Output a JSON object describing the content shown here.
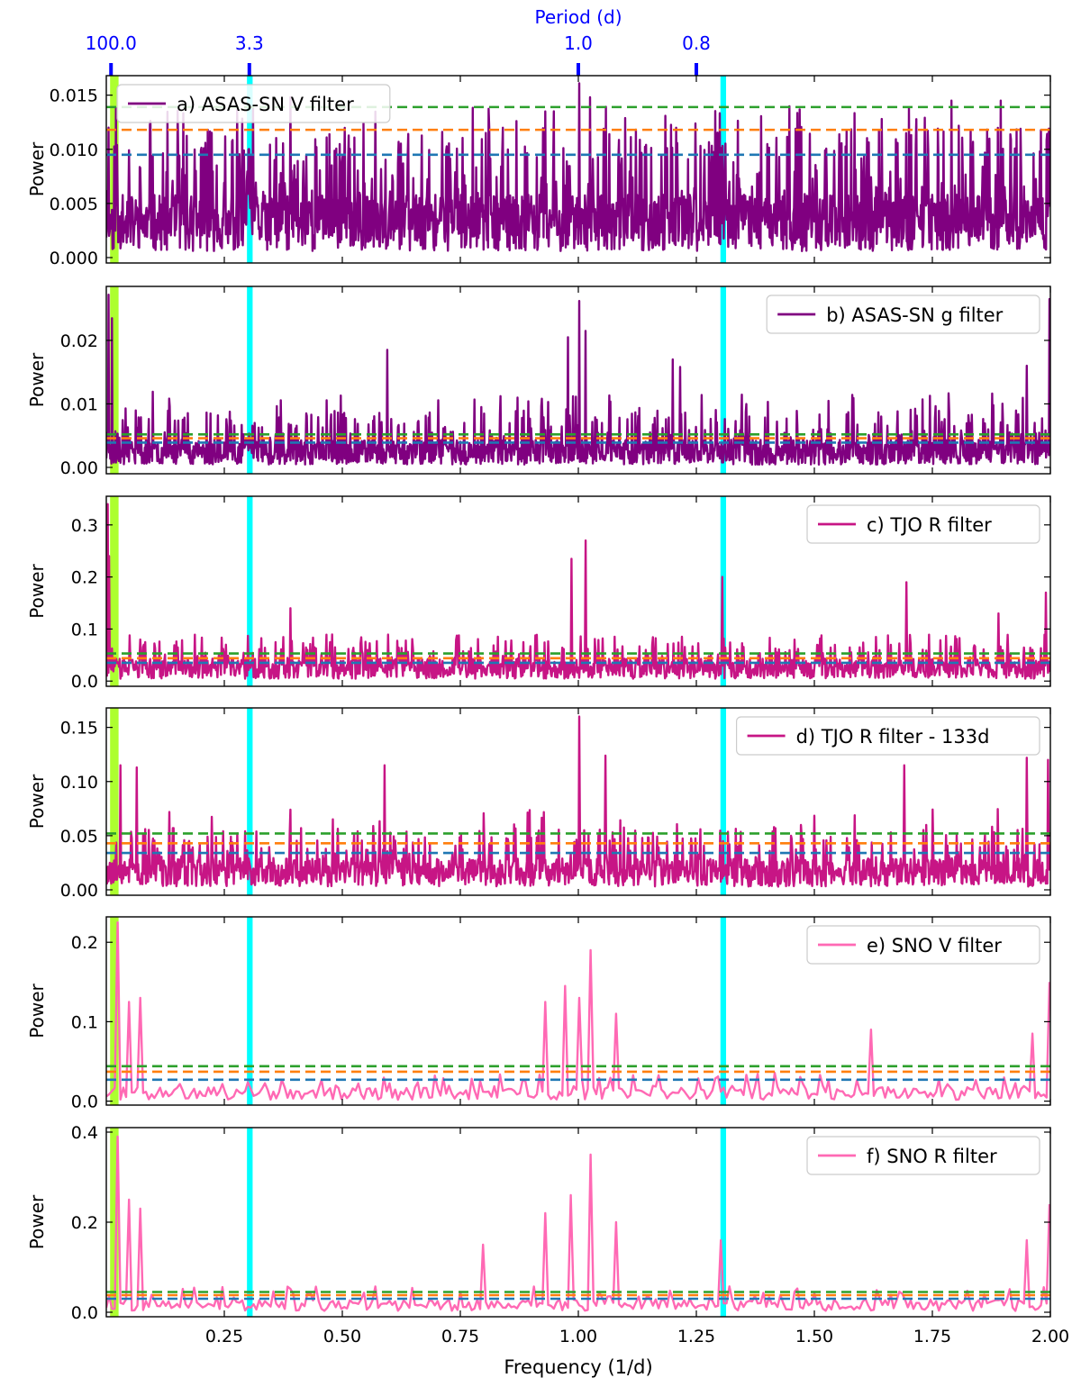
{
  "top_axis": {
    "label": "Period (d)",
    "ticks": [
      {
        "period": 100.0,
        "label": "100.0"
      },
      {
        "period": 3.3,
        "label": "3.3"
      },
      {
        "period": 1.0,
        "label": "1.0"
      },
      {
        "period": 0.8,
        "label": "0.8"
      }
    ],
    "color": "#0000ff"
  },
  "x_axis": {
    "label": "Frequency (1/d)",
    "range": [
      0.0,
      2.0
    ],
    "ticks": [
      0.25,
      0.5,
      0.75,
      1.0,
      1.25,
      1.5,
      1.75,
      2.0
    ],
    "tick_labels": [
      "0.25",
      "0.50",
      "0.75",
      "1.00",
      "1.25",
      "1.50",
      "1.75",
      "2.00"
    ]
  },
  "highlight_bands": [
    {
      "name": "green-yellow-band",
      "from": 0.008,
      "to": 0.026,
      "color": "#adff2f"
    },
    {
      "name": "cyan-band-1",
      "from": 0.298,
      "to": 0.31,
      "color": "#00ffff"
    },
    {
      "name": "cyan-band-2",
      "from": 1.301,
      "to": 1.313,
      "color": "#00ffff"
    }
  ],
  "threshold_colors": [
    "#2ca02c",
    "#ff7f0e",
    "#1f77b4"
  ],
  "chart_data": [
    {
      "type": "line",
      "legend": "a) ASAS-SN V filter",
      "legend_position": "top-left",
      "color": "#800080",
      "ylabel": "Power",
      "ylim": [
        -0.0005,
        0.0168
      ],
      "yticks": [
        0.0,
        0.005,
        0.01,
        0.015
      ],
      "ytick_labels": [
        "0.000",
        "0.005",
        "0.010",
        "0.015"
      ],
      "thresholds": [
        0.0139,
        0.0118,
        0.0095
      ],
      "noise": {
        "base": 0.004,
        "spike": 0.014,
        "resolution": 0.0012,
        "seed": 11
      },
      "peaks": [
        {
          "x": 0.005,
          "y": 0.012
        },
        {
          "x": 0.02,
          "y": 0.0138
        },
        {
          "x": 0.215,
          "y": 0.0118
        },
        {
          "x": 0.39,
          "y": 0.0148
        },
        {
          "x": 0.545,
          "y": 0.0124
        },
        {
          "x": 0.93,
          "y": 0.0135
        },
        {
          "x": 1.002,
          "y": 0.0161
        },
        {
          "x": 1.025,
          "y": 0.0148
        },
        {
          "x": 1.7,
          "y": 0.0138
        },
        {
          "x": 1.79,
          "y": 0.0145
        },
        {
          "x": 1.895,
          "y": 0.0145
        }
      ]
    },
    {
      "type": "line",
      "legend": "b) ASAS-SN g filter",
      "legend_position": "top-right",
      "color": "#800080",
      "ylabel": "Power",
      "ylim": [
        -0.001,
        0.0285
      ],
      "yticks": [
        0.0,
        0.01,
        0.02
      ],
      "ytick_labels": [
        "0.00",
        "0.01",
        "0.02"
      ],
      "thresholds": [
        0.0052,
        0.0046,
        0.0039
      ],
      "noise": {
        "base": 0.003,
        "spike": 0.012,
        "resolution": 0.0012,
        "seed": 23
      },
      "peaks": [
        {
          "x": 0.005,
          "y": 0.0272
        },
        {
          "x": 0.012,
          "y": 0.0235
        },
        {
          "x": 0.595,
          "y": 0.0185
        },
        {
          "x": 0.978,
          "y": 0.0205
        },
        {
          "x": 1.002,
          "y": 0.0262
        },
        {
          "x": 1.015,
          "y": 0.0215
        },
        {
          "x": 1.2,
          "y": 0.017
        },
        {
          "x": 1.215,
          "y": 0.0158
        },
        {
          "x": 1.95,
          "y": 0.016
        },
        {
          "x": 1.998,
          "y": 0.0265
        }
      ]
    },
    {
      "type": "line",
      "legend": "c) TJO R filter",
      "legend_position": "top-right",
      "color": "#c71585",
      "ylabel": "Power",
      "ylim": [
        -0.01,
        0.355
      ],
      "yticks": [
        0.0,
        0.1,
        0.2,
        0.3
      ],
      "ytick_labels": [
        "0.0",
        "0.1",
        "0.2",
        "0.3"
      ],
      "thresholds": [
        0.053,
        0.044,
        0.035
      ],
      "noise": {
        "base": 0.03,
        "spike": 0.07,
        "resolution": 0.0015,
        "seed": 37
      },
      "peaks": [
        {
          "x": 0.003,
          "y": 0.34
        },
        {
          "x": 0.006,
          "y": 0.24
        },
        {
          "x": 0.39,
          "y": 0.14
        },
        {
          "x": 0.985,
          "y": 0.235
        },
        {
          "x": 1.015,
          "y": 0.27
        },
        {
          "x": 1.305,
          "y": 0.2
        },
        {
          "x": 1.695,
          "y": 0.19
        },
        {
          "x": 1.89,
          "y": 0.13
        },
        {
          "x": 1.99,
          "y": 0.17
        }
      ]
    },
    {
      "type": "line",
      "legend": "d) TJO R filter - 133d",
      "legend_position": "top-right",
      "color": "#c71585",
      "ylabel": "Power",
      "ylim": [
        -0.005,
        0.168
      ],
      "yticks": [
        0.0,
        0.05,
        0.1,
        0.15
      ],
      "ytick_labels": [
        "0.00",
        "0.05",
        "0.10",
        "0.15"
      ],
      "thresholds": [
        0.052,
        0.043,
        0.034
      ],
      "noise": {
        "base": 0.02,
        "spike": 0.075,
        "resolution": 0.0015,
        "seed": 53
      },
      "peaks": [
        {
          "x": 0.03,
          "y": 0.115
        },
        {
          "x": 0.065,
          "y": 0.113
        },
        {
          "x": 0.59,
          "y": 0.115
        },
        {
          "x": 1.002,
          "y": 0.16
        },
        {
          "x": 1.058,
          "y": 0.124
        },
        {
          "x": 1.69,
          "y": 0.115
        },
        {
          "x": 1.95,
          "y": 0.122
        },
        {
          "x": 1.995,
          "y": 0.12
        }
      ]
    },
    {
      "type": "line",
      "legend": "e) SNO V filter",
      "legend_position": "top-right",
      "color": "#ff69b4",
      "ylabel": "Power",
      "ylim": [
        -0.005,
        0.232
      ],
      "yticks": [
        0.0,
        0.1,
        0.2
      ],
      "ytick_labels": [
        "0.0",
        "0.1",
        "0.2"
      ],
      "thresholds": [
        0.044,
        0.037,
        0.027
      ],
      "noise": {
        "base": 0.012,
        "spike": 0.03,
        "resolution": 0.006,
        "seed": 71
      },
      "peaks": [
        {
          "x": 0.025,
          "y": 0.225
        },
        {
          "x": 0.048,
          "y": 0.125
        },
        {
          "x": 0.07,
          "y": 0.13
        },
        {
          "x": 0.93,
          "y": 0.125
        },
        {
          "x": 0.97,
          "y": 0.145
        },
        {
          "x": 1.002,
          "y": 0.13
        },
        {
          "x": 1.027,
          "y": 0.19
        },
        {
          "x": 1.08,
          "y": 0.11
        },
        {
          "x": 1.62,
          "y": 0.09
        },
        {
          "x": 1.96,
          "y": 0.085
        },
        {
          "x": 1.998,
          "y": 0.15
        }
      ]
    },
    {
      "type": "line",
      "legend": "f) SNO R filter",
      "legend_position": "top-right",
      "color": "#ff69b4",
      "ylabel": "Power",
      "ylim": [
        -0.01,
        0.41
      ],
      "yticks": [
        0.0,
        0.2,
        0.4
      ],
      "ytick_labels": [
        "0.0",
        "0.2",
        "0.4"
      ],
      "thresholds": [
        0.045,
        0.038,
        0.03
      ],
      "noise": {
        "base": 0.02,
        "spike": 0.045,
        "resolution": 0.006,
        "seed": 89
      },
      "peaks": [
        {
          "x": 0.025,
          "y": 0.39
        },
        {
          "x": 0.045,
          "y": 0.25
        },
        {
          "x": 0.07,
          "y": 0.23
        },
        {
          "x": 0.8,
          "y": 0.15
        },
        {
          "x": 0.93,
          "y": 0.22
        },
        {
          "x": 0.985,
          "y": 0.26
        },
        {
          "x": 1.025,
          "y": 0.35
        },
        {
          "x": 1.08,
          "y": 0.2
        },
        {
          "x": 1.305,
          "y": 0.16
        },
        {
          "x": 1.95,
          "y": 0.16
        },
        {
          "x": 1.998,
          "y": 0.24
        }
      ]
    }
  ]
}
